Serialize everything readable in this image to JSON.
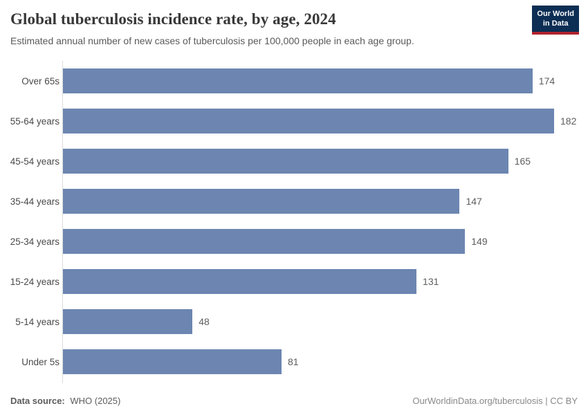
{
  "header": {
    "title": "Global tuberculosis incidence rate, by age, 2024",
    "subtitle": "Estimated annual number of new cases of tuberculosis per 100,000 people in each age group.",
    "logo": {
      "line1": "Our World",
      "line2": "in Data"
    }
  },
  "chart_data": {
    "type": "bar",
    "orientation": "horizontal",
    "title": "Global tuberculosis incidence rate, by age, 2024",
    "categories": [
      "Over 65s",
      "55-64 years",
      "45-54 years",
      "35-44 years",
      "25-34 years",
      "15-24 years",
      "5-14 years",
      "Under 5s"
    ],
    "values": [
      174,
      182,
      165,
      147,
      149,
      131,
      48,
      81
    ],
    "xlabel": "",
    "ylabel": "",
    "xlim": [
      0,
      182
    ],
    "grid": false,
    "value_labels_shown": true,
    "legend": "none",
    "bar_color": "#6c86b1"
  },
  "footer": {
    "source_label": "Data source:",
    "source_value": "WHO (2025)",
    "link": "OurWorldinData.org/tuberculosis | CC BY"
  },
  "colors": {
    "bar": "#6c86b1",
    "axis": "#dcdcdc",
    "title_text": "#383838",
    "subtitle_text": "#5a5a5a",
    "logo_bg": "#0d2e54",
    "logo_red": "#b0232f"
  }
}
